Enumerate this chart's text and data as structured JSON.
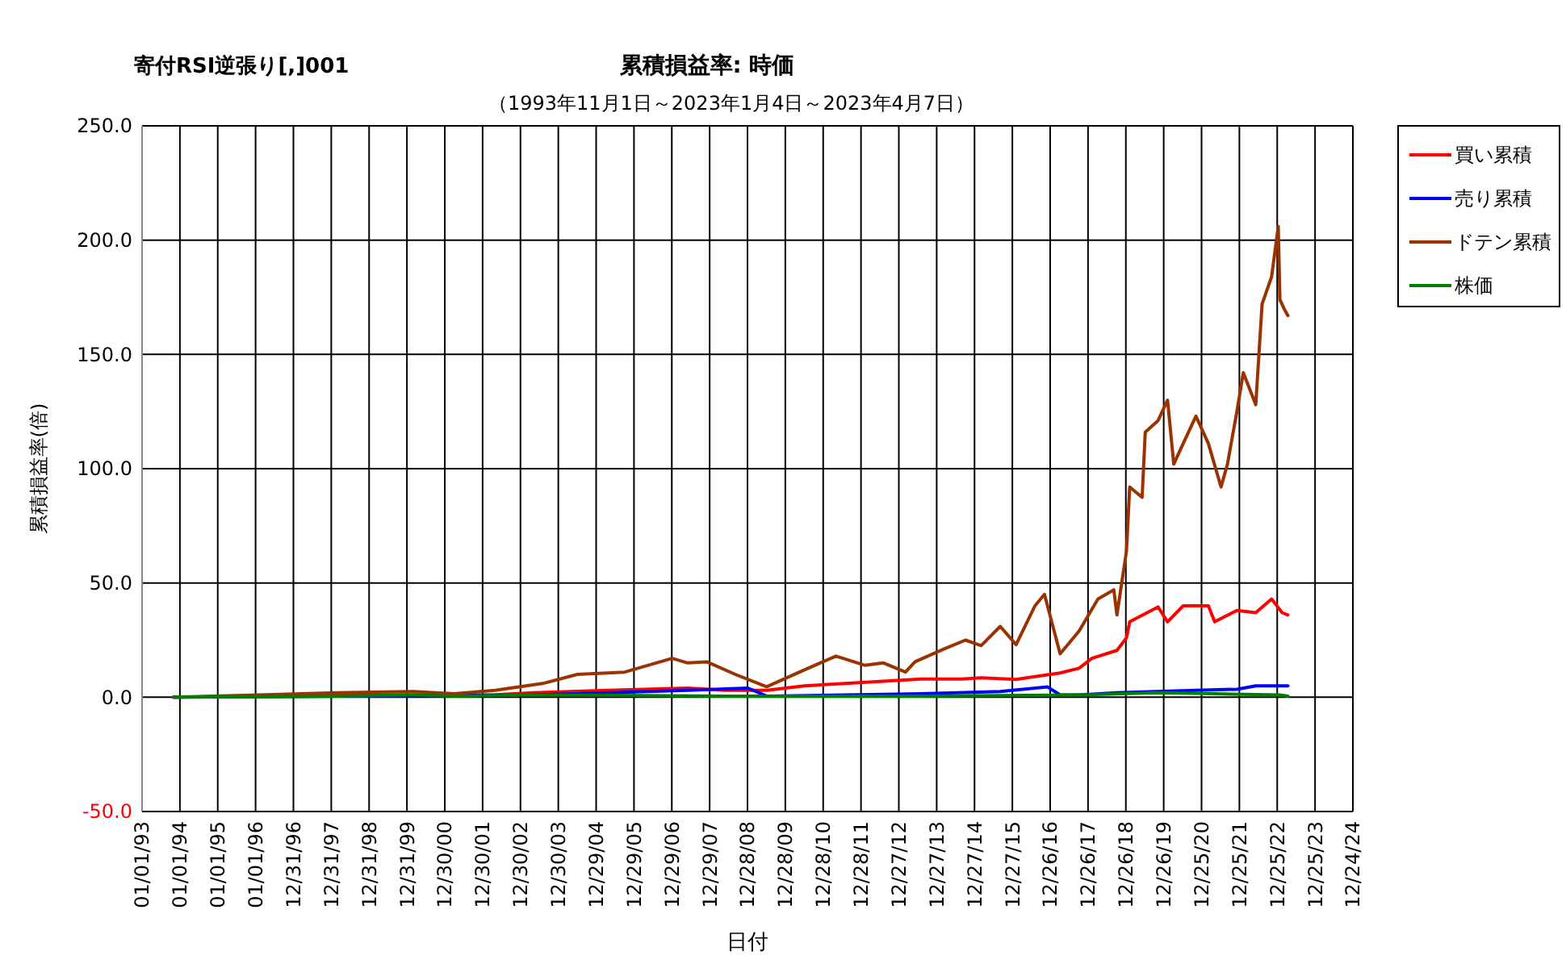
{
  "chart_data": {
    "type": "line",
    "title": "累積損益率:  時価",
    "subtitle": "（1993年11月1日～2023年1月4日～2023年4月7日）",
    "annotations": [
      "寄付RSI逆張り[,]001"
    ],
    "xlabel": "日付",
    "ylabel": "累積損益率(倍)",
    "xlim": [
      "1993-01-01",
      "2024-12-24"
    ],
    "xticks": [
      {
        "value": "1993-01-01",
        "label": "01/01/93"
      },
      {
        "value": "1994-01-01",
        "label": "01/01/94"
      },
      {
        "value": "1995-01-01",
        "label": "01/01/95"
      },
      {
        "value": "1996-01-01",
        "label": "01/01/96"
      },
      {
        "value": "1996-12-31",
        "label": "12/31/96"
      },
      {
        "value": "1997-12-31",
        "label": "12/31/97"
      },
      {
        "value": "1998-12-31",
        "label": "12/31/98"
      },
      {
        "value": "1999-12-31",
        "label": "12/31/99"
      },
      {
        "value": "2000-12-30",
        "label": "12/30/00"
      },
      {
        "value": "2001-12-30",
        "label": "12/30/01"
      },
      {
        "value": "2002-12-30",
        "label": "12/30/02"
      },
      {
        "value": "2003-12-30",
        "label": "12/30/03"
      },
      {
        "value": "2004-12-29",
        "label": "12/29/04"
      },
      {
        "value": "2005-12-29",
        "label": "12/29/05"
      },
      {
        "value": "2006-12-29",
        "label": "12/29/06"
      },
      {
        "value": "2007-12-29",
        "label": "12/29/07"
      },
      {
        "value": "2008-12-28",
        "label": "12/28/08"
      },
      {
        "value": "2009-12-28",
        "label": "12/28/09"
      },
      {
        "value": "2010-12-28",
        "label": "12/28/10"
      },
      {
        "value": "2011-12-28",
        "label": "12/28/11"
      },
      {
        "value": "2012-12-27",
        "label": "12/27/12"
      },
      {
        "value": "2013-12-27",
        "label": "12/27/13"
      },
      {
        "value": "2014-12-27",
        "label": "12/27/14"
      },
      {
        "value": "2015-12-27",
        "label": "12/27/15"
      },
      {
        "value": "2016-12-26",
        "label": "12/26/16"
      },
      {
        "value": "2017-12-26",
        "label": "12/26/17"
      },
      {
        "value": "2018-12-26",
        "label": "12/26/18"
      },
      {
        "value": "2019-12-26",
        "label": "12/26/19"
      },
      {
        "value": "2020-12-25",
        "label": "12/25/20"
      },
      {
        "value": "2021-12-25",
        "label": "12/25/21"
      },
      {
        "value": "2022-12-25",
        "label": "12/25/22"
      },
      {
        "value": "2023-12-25",
        "label": "12/25/23"
      },
      {
        "value": "2024-12-24",
        "label": "12/24/24"
      }
    ],
    "ylim": [
      -50,
      250
    ],
    "yticks": [
      {
        "value": -50,
        "label": "-50.0"
      },
      {
        "value": 0,
        "label": "0.0"
      },
      {
        "value": 50,
        "label": "50.0"
      },
      {
        "value": 100,
        "label": "100.0"
      },
      {
        "value": 150,
        "label": "150.0"
      },
      {
        "value": 200,
        "label": "200.0"
      },
      {
        "value": 250,
        "label": "250.0"
      }
    ],
    "grid": true,
    "legend": "right",
    "line_style": "solid",
    "marker": "none",
    "series": [
      {
        "name": "買い累積",
        "color": "#ff0000",
        "x": [
          "1993-11-01",
          "1998-03",
          "2002-04",
          "2003-05",
          "2005-05",
          "2007-06",
          "2008-06",
          "2009-07",
          "2010-07",
          "2011-08",
          "2012-08",
          "2013-08",
          "2014-09",
          "2015-03",
          "2016-02",
          "2017-04",
          "2017-10",
          "2018-02",
          "2018-10",
          "2019-01",
          "2019-02",
          "2019-11",
          "2020-02",
          "2020-07",
          "2021-03",
          "2021-05",
          "2021-12",
          "2022-06",
          "2022-11",
          "2023-02-10",
          "2023-04-07"
        ],
        "values": [
          0,
          1,
          1,
          2,
          3,
          4,
          3,
          3,
          5,
          6,
          7,
          8,
          8,
          8.5,
          7.8,
          10.6,
          12.7,
          17,
          20.5,
          26,
          33,
          39.5,
          33,
          40,
          40,
          33,
          38,
          37,
          43,
          37,
          36
        ]
      },
      {
        "name": "売り累積",
        "color": "#0000ff",
        "x": [
          "1993-11-01",
          "1998-03",
          "2003-05",
          "2005-05",
          "2007-06",
          "2009-01",
          "2009-07",
          "2011-08",
          "2013-08",
          "2015-09",
          "2016-12",
          "2017-04",
          "2017-10",
          "2018-10",
          "2020-11",
          "2021-12",
          "2022-06",
          "2023-04-07"
        ],
        "values": [
          0,
          0.5,
          1,
          2,
          3,
          4,
          0.5,
          1,
          1.5,
          2.5,
          4.5,
          1,
          1,
          2,
          3,
          3.5,
          5,
          5
        ]
      },
      {
        "name": "ドテン累積",
        "color": "#993300",
        "x": [
          "1993-11-01",
          "1996-02",
          "1998-03",
          "2000-03",
          "2001-04",
          "2002-05",
          "2003-08",
          "2004-07",
          "2005-10",
          "2007-01",
          "2007-06",
          "2007-12",
          "2008-09",
          "2009-07",
          "2010-07",
          "2011-05",
          "2012-02",
          "2012-08",
          "2013-03",
          "2013-06",
          "2014-03",
          "2014-10",
          "2015-03",
          "2015-09",
          "2016-02",
          "2016-08",
          "2016-11",
          "2017-04",
          "2017-10",
          "2018-04",
          "2018-09",
          "2018-10",
          "2019-01",
          "2019-02",
          "2019-06",
          "2019-07",
          "2019-11",
          "2020-02",
          "2020-04",
          "2020-07",
          "2020-11",
          "2021-03",
          "2021-07",
          "2021-09",
          "2021-12",
          "2022-02",
          "2022-06",
          "2022-08",
          "2022-11",
          "2023-01-04",
          "2023-01-20",
          "2023-03-01",
          "2023-04-07"
        ],
        "values": [
          0,
          1,
          2,
          2.5,
          1.5,
          3,
          6,
          10,
          11,
          17,
          15,
          15.5,
          10,
          4.6,
          12,
          18,
          14,
          15,
          11,
          15.5,
          21,
          25,
          22.6,
          31,
          23,
          40,
          45,
          19,
          29,
          43,
          47,
          36,
          64,
          92,
          87.5,
          116,
          121,
          130,
          102,
          111,
          123,
          111,
          92,
          102,
          125,
          142,
          128,
          172,
          184,
          206,
          174,
          170,
          167
        ]
      },
      {
        "name": "株価",
        "color": "#008000",
        "x": [
          "1993-11-01",
          "1998-03",
          "2000-03",
          "2001-04",
          "2003-05",
          "2008-06",
          "2013-08",
          "2017-10",
          "2019-11",
          "2021-05",
          "2023-01-20",
          "2023-04-07"
        ],
        "values": [
          0,
          0.5,
          1,
          0.5,
          1,
          0.5,
          0.5,
          1,
          2,
          1.5,
          1,
          0.5
        ]
      }
    ]
  }
}
